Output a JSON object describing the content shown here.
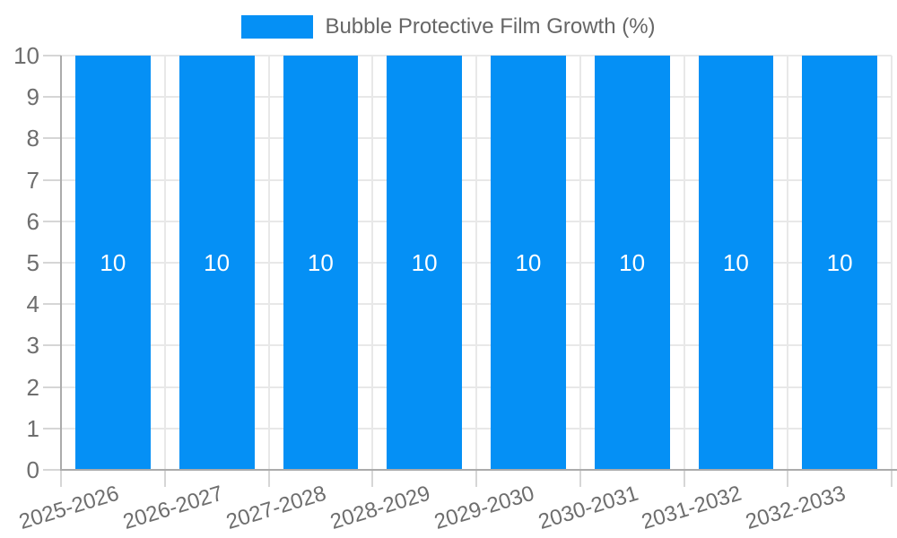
{
  "chart_data": {
    "type": "bar",
    "title": "Bubble Protective Film Growth (%)",
    "categories": [
      "2025-2026",
      "2026-2027",
      "2027-2028",
      "2028-2029",
      "2029-2030",
      "2030-2031",
      "2031-2032",
      "2032-2033"
    ],
    "series": [
      {
        "name": "Bubble Protective Film Growth (%)",
        "values": [
          10,
          10,
          10,
          10,
          10,
          10,
          10,
          10
        ]
      }
    ],
    "bar_value_labels": [
      "10",
      "10",
      "10",
      "10",
      "10",
      "10",
      "10",
      "10"
    ],
    "xlabel": "",
    "ylabel": "",
    "ylim": [
      0,
      10
    ],
    "yticks": [
      0,
      1,
      2,
      3,
      4,
      5,
      6,
      7,
      8,
      9,
      10
    ],
    "grid": true,
    "legend_position": "top-center",
    "colors": {
      "bar": "#0590F5",
      "bar_value_text": "#ffffff",
      "grid_line": "#e8e8e8",
      "tick_mark": "#d6d6d6",
      "axis_line": "#ababab",
      "tick_label_text": "#6e6e6e",
      "legend_text": "#666666",
      "background": "#ffffff"
    }
  }
}
